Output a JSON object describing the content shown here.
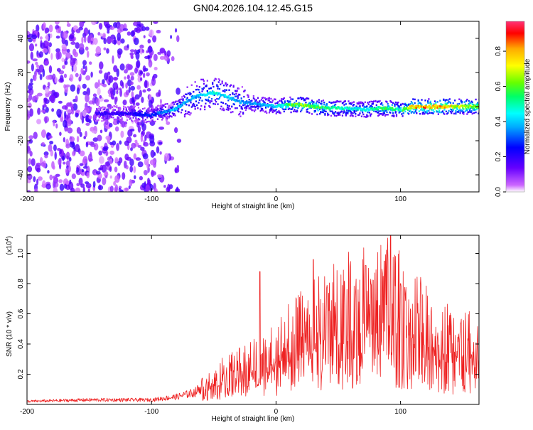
{
  "title": "GN04.2026.104.12.45.G15",
  "chart_data": [
    {
      "type": "heatmap",
      "xlabel": "Height of straight line (km)",
      "ylabel": "Frequency (Hz)",
      "xlim": [
        -200,
        163
      ],
      "ylim": [
        -50,
        50
      ],
      "x_ticks": [
        -200,
        -100,
        0,
        100
      ],
      "y_ticks": [
        -40,
        -20,
        0,
        20,
        40
      ],
      "colorbar": {
        "label": "Normalized spectral amplitude",
        "range": [
          0.0,
          0.97
        ],
        "ticks": [
          0.0,
          0.2,
          0.4,
          0.6,
          0.8
        ],
        "colors": [
          "#ffffff",
          "#cc66ff",
          "#6600ff",
          "#0000ff",
          "#00aaff",
          "#00ffff",
          "#00ff66",
          "#66ff00",
          "#ffff00",
          "#ffaa00",
          "#ff0000",
          "#ff3377"
        ]
      },
      "signal_track": {
        "x": [
          -145,
          -120,
          -100,
          -90,
          -80,
          -70,
          -60,
          -50,
          -40,
          -30,
          -20,
          -10,
          0,
          10,
          20,
          30,
          40,
          50,
          60,
          70,
          80,
          90,
          100,
          110,
          120,
          130,
          140,
          150,
          163
        ],
        "frequency": [
          -4,
          -4,
          -5,
          -3,
          -1,
          4,
          7,
          8,
          6,
          3,
          2,
          1,
          0,
          1,
          1,
          0,
          -1,
          -1,
          -1,
          -2,
          -1,
          -1,
          -2,
          0,
          0,
          0,
          0,
          0,
          0
        ],
        "amplitude": [
          0.2,
          0.22,
          0.3,
          0.38,
          0.45,
          0.4,
          0.45,
          0.5,
          0.45,
          0.4,
          0.38,
          0.42,
          0.45,
          0.6,
          0.7,
          0.65,
          0.6,
          0.55,
          0.5,
          0.5,
          0.55,
          0.6,
          0.55,
          0.85,
          0.9,
          0.88,
          0.8,
          0.75,
          0.7
        ]
      },
      "noise_region": [
        -200,
        -75
      ]
    },
    {
      "type": "line",
      "xlabel": "Height of straight line (km)",
      "ylabel": "SNR (10 * v/v)",
      "y_multiplier": "(x10",
      "y_multiplier_exp": "4",
      "xlim": [
        -200,
        163
      ],
      "ylim": [
        0,
        1.12
      ],
      "x_ticks": [
        -200,
        -100,
        0,
        100
      ],
      "y_ticks": [
        0.2,
        0.4,
        0.6,
        0.8,
        1.0
      ],
      "color": "#ee2222",
      "envelope": {
        "x": [
          -200,
          -150,
          -100,
          -80,
          -65,
          -55,
          -45,
          -30,
          -20,
          -10,
          0,
          10,
          20,
          30,
          40,
          50,
          60,
          70,
          80,
          90,
          100,
          110,
          120,
          130,
          140,
          150,
          163
        ],
        "y": [
          0.02,
          0.03,
          0.03,
          0.05,
          0.08,
          0.15,
          0.2,
          0.25,
          0.3,
          0.33,
          0.38,
          0.45,
          0.5,
          0.55,
          0.6,
          0.65,
          0.68,
          0.7,
          0.72,
          0.75,
          0.68,
          0.6,
          0.55,
          0.5,
          0.45,
          0.42,
          0.4
        ]
      },
      "peaks": [
        {
          "x": -13,
          "y": 0.88
        },
        {
          "x": 30,
          "y": 0.96
        },
        {
          "x": 72,
          "y": 0.92
        },
        {
          "x": 92,
          "y": 1.12
        },
        {
          "x": 87,
          "y": 0.95
        },
        {
          "x": 100,
          "y": 0.8
        }
      ]
    }
  ]
}
